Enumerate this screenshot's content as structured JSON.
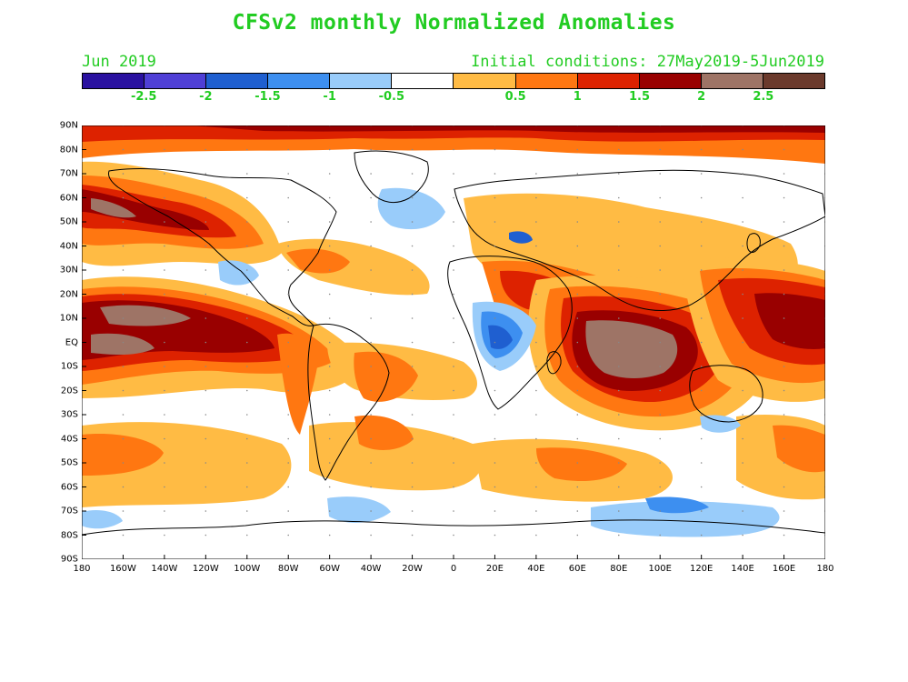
{
  "header": {
    "title": "CFSv2 monthly Normalized Anomalies",
    "month": "Jun 2019",
    "init": "Initial conditions: 27May2019-5Jun2019"
  },
  "colorbar": {
    "colors": [
      "#2a11a0",
      "#4f3fd6",
      "#1f5fd0",
      "#3d8ff0",
      "#99ccfa",
      "#ffffff",
      "#ffbb44",
      "#ff7711",
      "#dd2200",
      "#990000",
      "#9e7466",
      "#6b3a2c"
    ],
    "labels": [
      "-2.5",
      "-2",
      "-1.5",
      "-1",
      "-0.5",
      "0.5",
      "1",
      "1.5",
      "2",
      "2.5"
    ]
  },
  "axes": {
    "lat_labels": [
      "90N",
      "80N",
      "70N",
      "60N",
      "50N",
      "40N",
      "30N",
      "20N",
      "10N",
      "EQ",
      "10S",
      "20S",
      "30S",
      "40S",
      "50S",
      "60S",
      "70S",
      "80S",
      "90S"
    ],
    "lon_labels": [
      "180",
      "160W",
      "140W",
      "120W",
      "100W",
      "80W",
      "60W",
      "40W",
      "20W",
      "0",
      "20E",
      "40E",
      "60E",
      "80E",
      "100E",
      "120E",
      "140E",
      "160E",
      "180"
    ]
  },
  "map": {
    "warm_colors": {
      "weak": "#ffbb44",
      "moderate": "#ff7711",
      "strong": "#dd2200",
      "very_strong": "#990000",
      "extreme": "#9e7466"
    },
    "cool_colors": {
      "weak": "#99ccfa",
      "moderate": "#3d8ff0",
      "strong": "#1f5fd0",
      "extreme": "#2a11a0"
    }
  }
}
